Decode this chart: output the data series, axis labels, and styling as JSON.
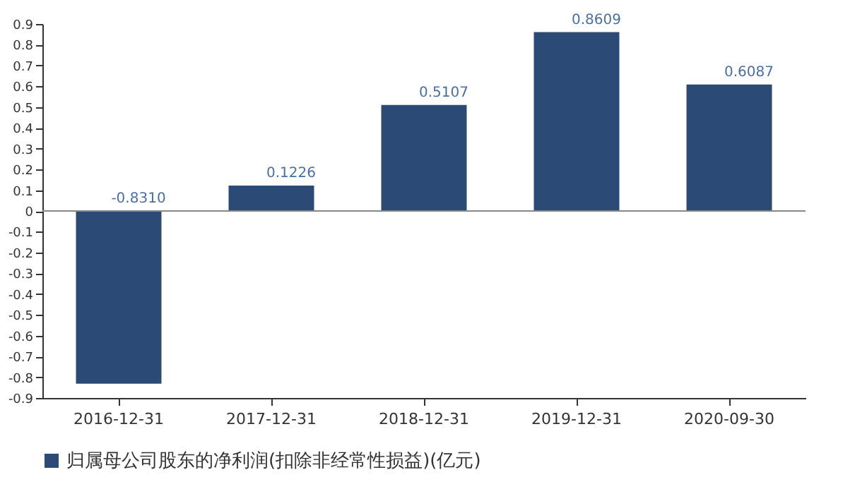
{
  "chart_data": {
    "type": "bar",
    "categories": [
      "2016-12-31",
      "2017-12-31",
      "2018-12-31",
      "2019-12-31",
      "2020-09-30"
    ],
    "series": [
      {
        "name": "归属母公司股东的净利润(扣除非经常性损益)(亿元)",
        "color": "#2b4a75",
        "values": [
          -0.831,
          0.1226,
          0.5107,
          0.8609,
          0.6087
        ],
        "value_labels": [
          "-0.8310",
          "0.1226",
          "0.5107",
          "0.8609",
          "0.6087"
        ]
      }
    ],
    "ylim": [
      -0.9,
      0.9
    ],
    "yticks": [
      -0.9,
      -0.8,
      -0.7,
      -0.6,
      -0.5,
      -0.4,
      -0.3,
      -0.2,
      -0.1,
      0,
      0.1,
      0.2,
      0.3,
      0.4,
      0.5,
      0.6,
      0.7,
      0.8,
      0.9
    ],
    "ref_lines": [
      {
        "axis": "y",
        "value": 0,
        "color": "#888888"
      }
    ],
    "grid": false,
    "legend": "bottom"
  }
}
